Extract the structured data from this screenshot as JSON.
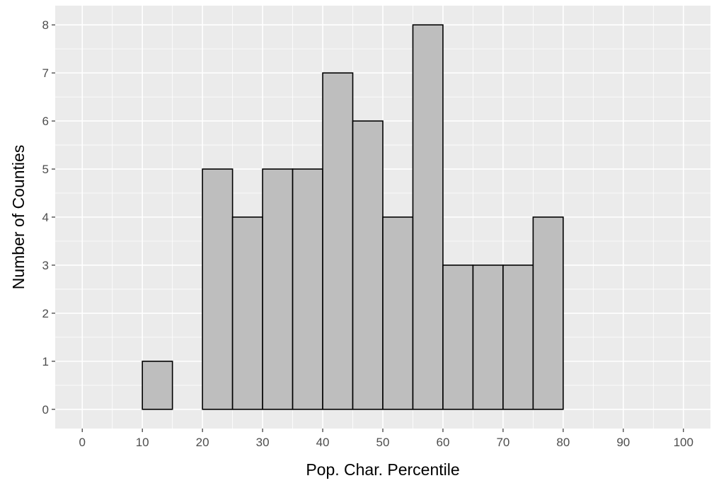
{
  "chart_data": {
    "type": "bar",
    "subtype": "histogram",
    "title": "",
    "xlabel": "Pop. Char. Percentile",
    "ylabel": "Number of Counties",
    "xlim": [
      -4.5,
      104.5
    ],
    "ylim": [
      -0.4,
      8.4
    ],
    "x_ticks": [
      0,
      10,
      20,
      30,
      40,
      50,
      60,
      70,
      80,
      90,
      100
    ],
    "y_ticks": [
      0,
      1,
      2,
      3,
      4,
      5,
      6,
      7,
      8
    ],
    "bin_width": 5,
    "bin_starts": [
      0,
      5,
      10,
      15,
      20,
      25,
      30,
      35,
      40,
      45,
      50,
      55,
      60,
      65,
      70,
      75,
      80,
      85,
      90,
      95
    ],
    "values": [
      0,
      0,
      1,
      0,
      5,
      4,
      5,
      5,
      7,
      6,
      4,
      8,
      3,
      3,
      3,
      4,
      0,
      0,
      0,
      0
    ],
    "grid": true,
    "legend": "none",
    "colors": {
      "panel_background": "#ebebeb",
      "grid_major": "#ffffff",
      "bar_fill": "#bebebe",
      "bar_outline": "#000000",
      "tick_text": "#4d4d4d",
      "tick_mark": "#333333"
    }
  }
}
